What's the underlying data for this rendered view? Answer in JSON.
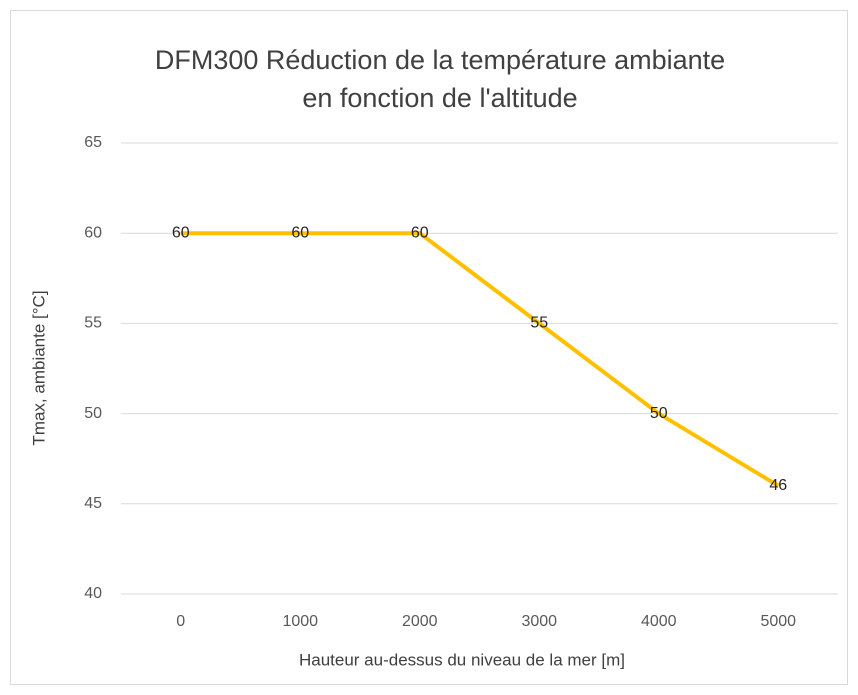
{
  "chart_data": {
    "type": "line",
    "title": [
      "DFM300 Réduction de la température ambiante",
      "en fonction de l'altitude"
    ],
    "x_label": "Hauteur au-dessus du niveau de la mer [m]",
    "y_label": "Tmax, ambiante [°C]",
    "categories": [
      "0",
      "1000",
      "2000",
      "3000",
      "4000",
      "5000"
    ],
    "values": [
      60,
      60,
      60,
      55,
      50,
      46
    ],
    "color": "#ffc000",
    "ylim": [
      40,
      65
    ],
    "yticks": [
      40,
      45,
      50,
      55,
      60,
      65
    ],
    "grid": true,
    "data_labels": true
  }
}
